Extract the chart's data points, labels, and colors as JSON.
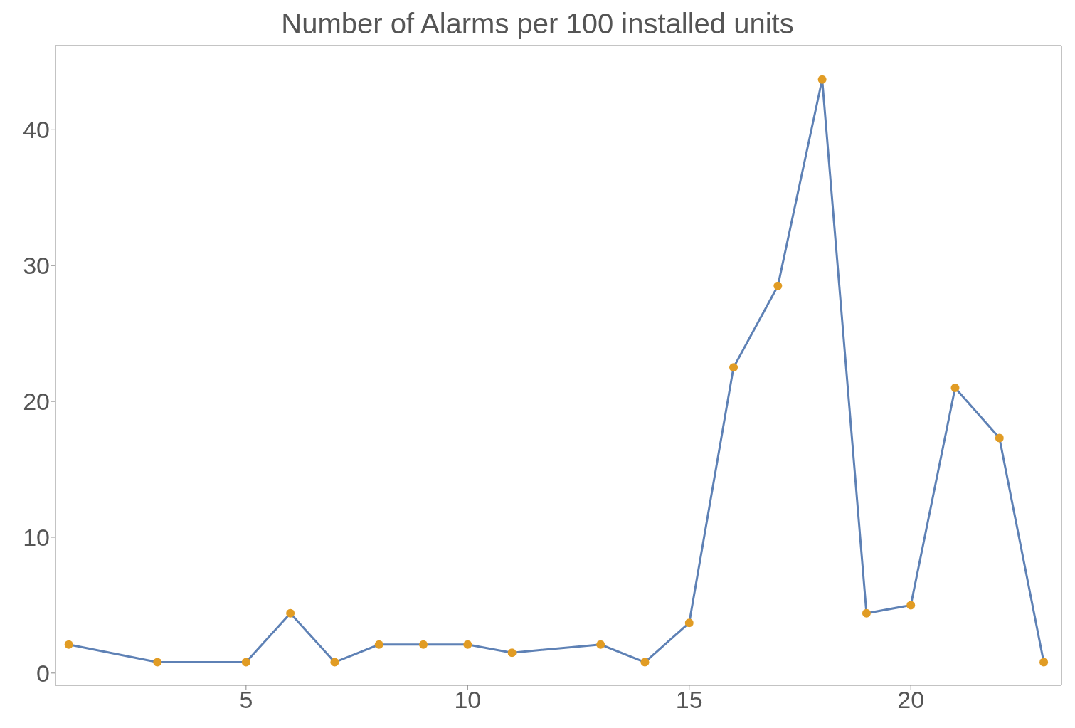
{
  "chart_data": {
    "type": "line",
    "title": "Number of Alarms per 100 installed units",
    "x": [
      1,
      3,
      5,
      6,
      7,
      8,
      9,
      10,
      11,
      13,
      14,
      15,
      16,
      17,
      18,
      19,
      20,
      21,
      22,
      23
    ],
    "series": [
      {
        "color": "#5e81b5",
        "colors": [
          "#e19c24",
          "#e19c24",
          "#e19c24",
          "#e19c24",
          "#e19c24",
          "#e19c24",
          "#e19c24",
          "#e19c24",
          "#e19c24",
          "#e19c24",
          "#e19c24",
          "#e19c24",
          "#e19c24",
          "#e19c24",
          "#e19c24",
          "#e19c24",
          "#e19c24",
          "#e19c24",
          "#e19c24",
          "#e19c24"
        ],
        "values": [
          2.1,
          0.8,
          0.8,
          4.4,
          0.8,
          2.1,
          2.1,
          2.1,
          1.5,
          2.1,
          0.8,
          3.7,
          22.5,
          28.5,
          43.7,
          4.4,
          5.0,
          21.0,
          17.3,
          0.8
        ]
      }
    ],
    "xlim": [
      0.7,
      23.4
    ],
    "xticks": [
      5,
      10,
      15,
      20
    ],
    "ylim": [
      -0.9,
      46.2
    ],
    "yticks": [
      0,
      10,
      20,
      30,
      40
    ],
    "grid": false,
    "marker": "circle",
    "line_style": "solid"
  }
}
